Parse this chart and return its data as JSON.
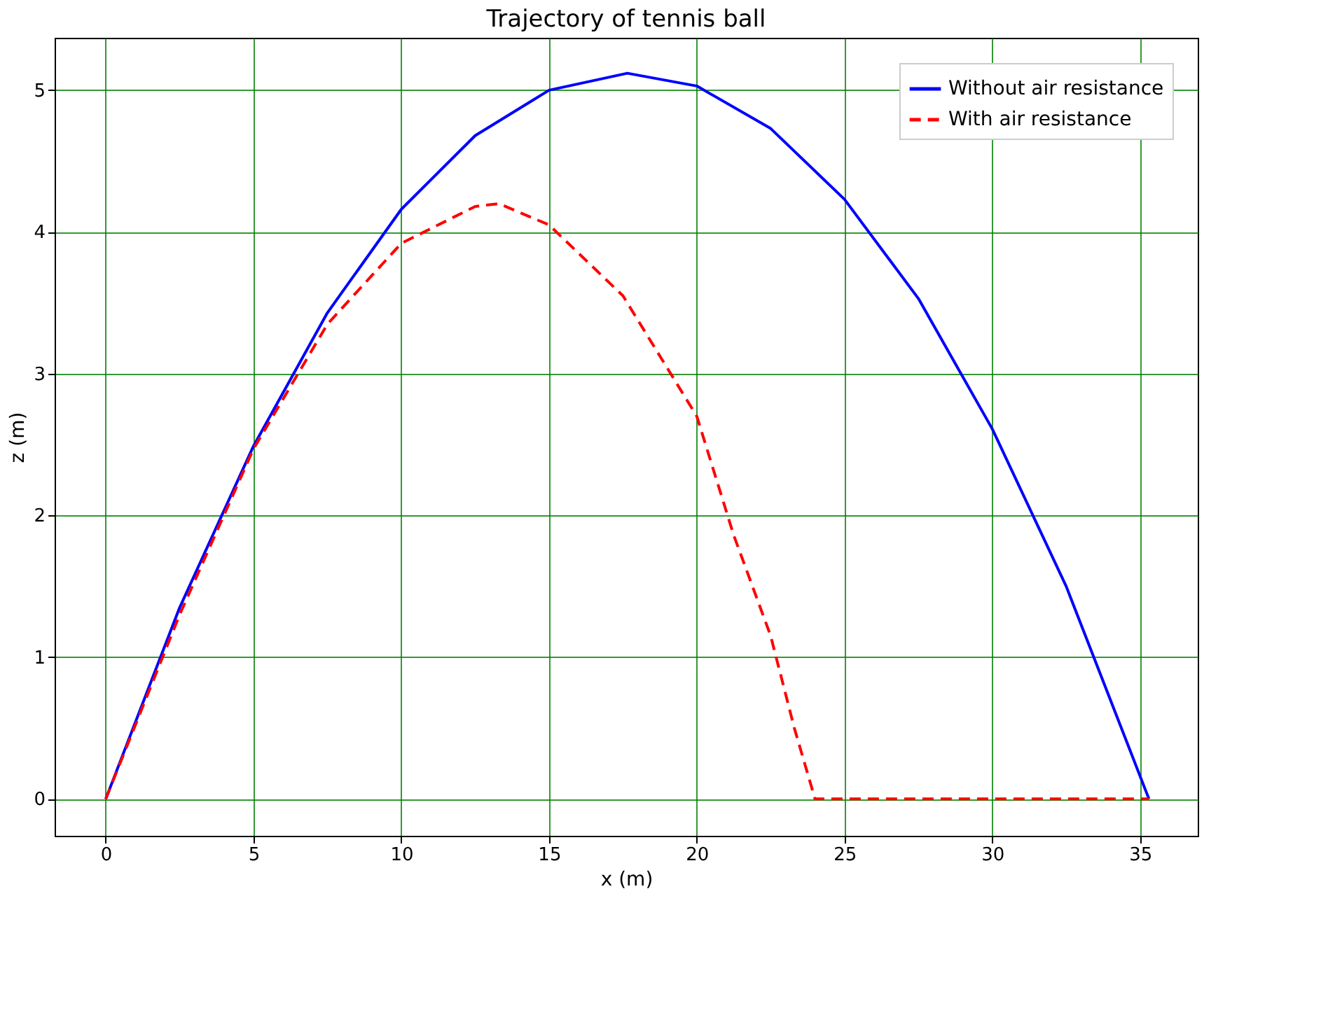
{
  "chart_data": {
    "type": "line",
    "title": "Trajectory of tennis ball",
    "xlabel": "x (m)",
    "ylabel": "z (m)",
    "xlim": [
      -1.73,
      36.95
    ],
    "ylim": [
      -0.26,
      5.37
    ],
    "xticks": [
      0,
      5,
      10,
      15,
      20,
      25,
      30,
      35
    ],
    "yticks": [
      0,
      1,
      2,
      3,
      4,
      5
    ],
    "grid": true,
    "legend": "top right",
    "series": [
      {
        "name": "Without air resistance",
        "color": "#0000ff",
        "line_style": "solid",
        "x": [
          0,
          2.5,
          5,
          7.5,
          10,
          12.5,
          15,
          17.65,
          20,
          22.5,
          25,
          27.5,
          30,
          32.5,
          35.3
        ],
        "values": [
          0,
          1.35,
          2.49,
          3.43,
          4.16,
          4.68,
          5.0,
          5.12,
          5.03,
          4.73,
          4.23,
          3.53,
          2.61,
          1.5,
          0
        ]
      },
      {
        "name": "With air resistance",
        "color": "#ff0000",
        "line_style": "dashed",
        "x": [
          0,
          2.5,
          5,
          7.5,
          10,
          12.5,
          13.3,
          15,
          17.5,
          20,
          21.25,
          22.5,
          23.3,
          24,
          35.3
        ],
        "values": [
          0,
          1.3,
          2.47,
          3.35,
          3.92,
          4.18,
          4.2,
          4.05,
          3.55,
          2.7,
          1.86,
          1.15,
          0.5,
          0.0,
          0
        ]
      }
    ]
  }
}
